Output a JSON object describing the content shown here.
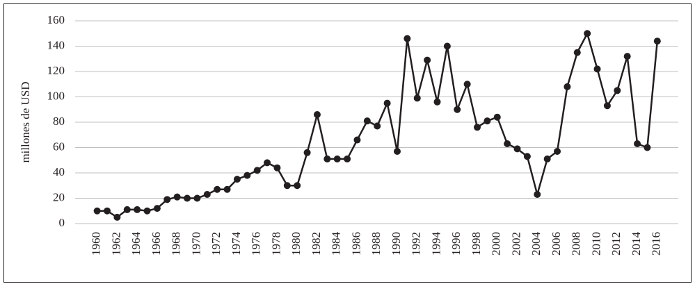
{
  "chart_data": {
    "type": "line",
    "y_label": "millones de USD",
    "x": [
      1960,
      1961,
      1962,
      1963,
      1964,
      1965,
      1966,
      1967,
      1968,
      1969,
      1970,
      1971,
      1972,
      1973,
      1974,
      1975,
      1976,
      1977,
      1978,
      1979,
      1980,
      1981,
      1982,
      1983,
      1984,
      1985,
      1986,
      1987,
      1988,
      1989,
      1990,
      1991,
      1992,
      1993,
      1994,
      1995,
      1996,
      1997,
      1998,
      1999,
      2000,
      2001,
      2002,
      2003,
      2004,
      2005,
      2006,
      2007,
      2008,
      2009,
      2010,
      2011,
      2012,
      2013,
      2014,
      2015,
      2016
    ],
    "series": [
      {
        "color": "#231f20",
        "values": [
          10,
          10,
          5,
          11,
          11,
          10,
          12,
          19,
          21,
          20,
          20,
          23,
          27,
          27,
          35,
          38,
          42,
          48,
          44,
          30,
          30,
          56,
          86,
          51,
          51,
          51,
          66,
          81,
          77,
          95,
          57,
          146,
          99,
          129,
          96,
          140,
          90,
          110,
          76,
          81,
          84,
          63,
          59,
          53,
          23,
          51,
          57,
          108,
          135,
          150,
          122,
          93,
          105,
          132,
          63,
          60,
          144
        ]
      }
    ],
    "xlim": [
      1957.8,
      2018.1
    ],
    "xticks": [
      1960,
      1962,
      1964,
      1966,
      1968,
      1970,
      1972,
      1974,
      1976,
      1978,
      1980,
      1982,
      1984,
      1986,
      1988,
      1990,
      1992,
      1994,
      1996,
      1998,
      2000,
      2002,
      2004,
      2006,
      2008,
      2010,
      2012,
      2014,
      2016
    ],
    "ylim": [
      0,
      160
    ],
    "yticks": [
      0,
      20,
      40,
      60,
      80,
      100,
      120,
      140,
      160
    ],
    "grid": true
  }
}
